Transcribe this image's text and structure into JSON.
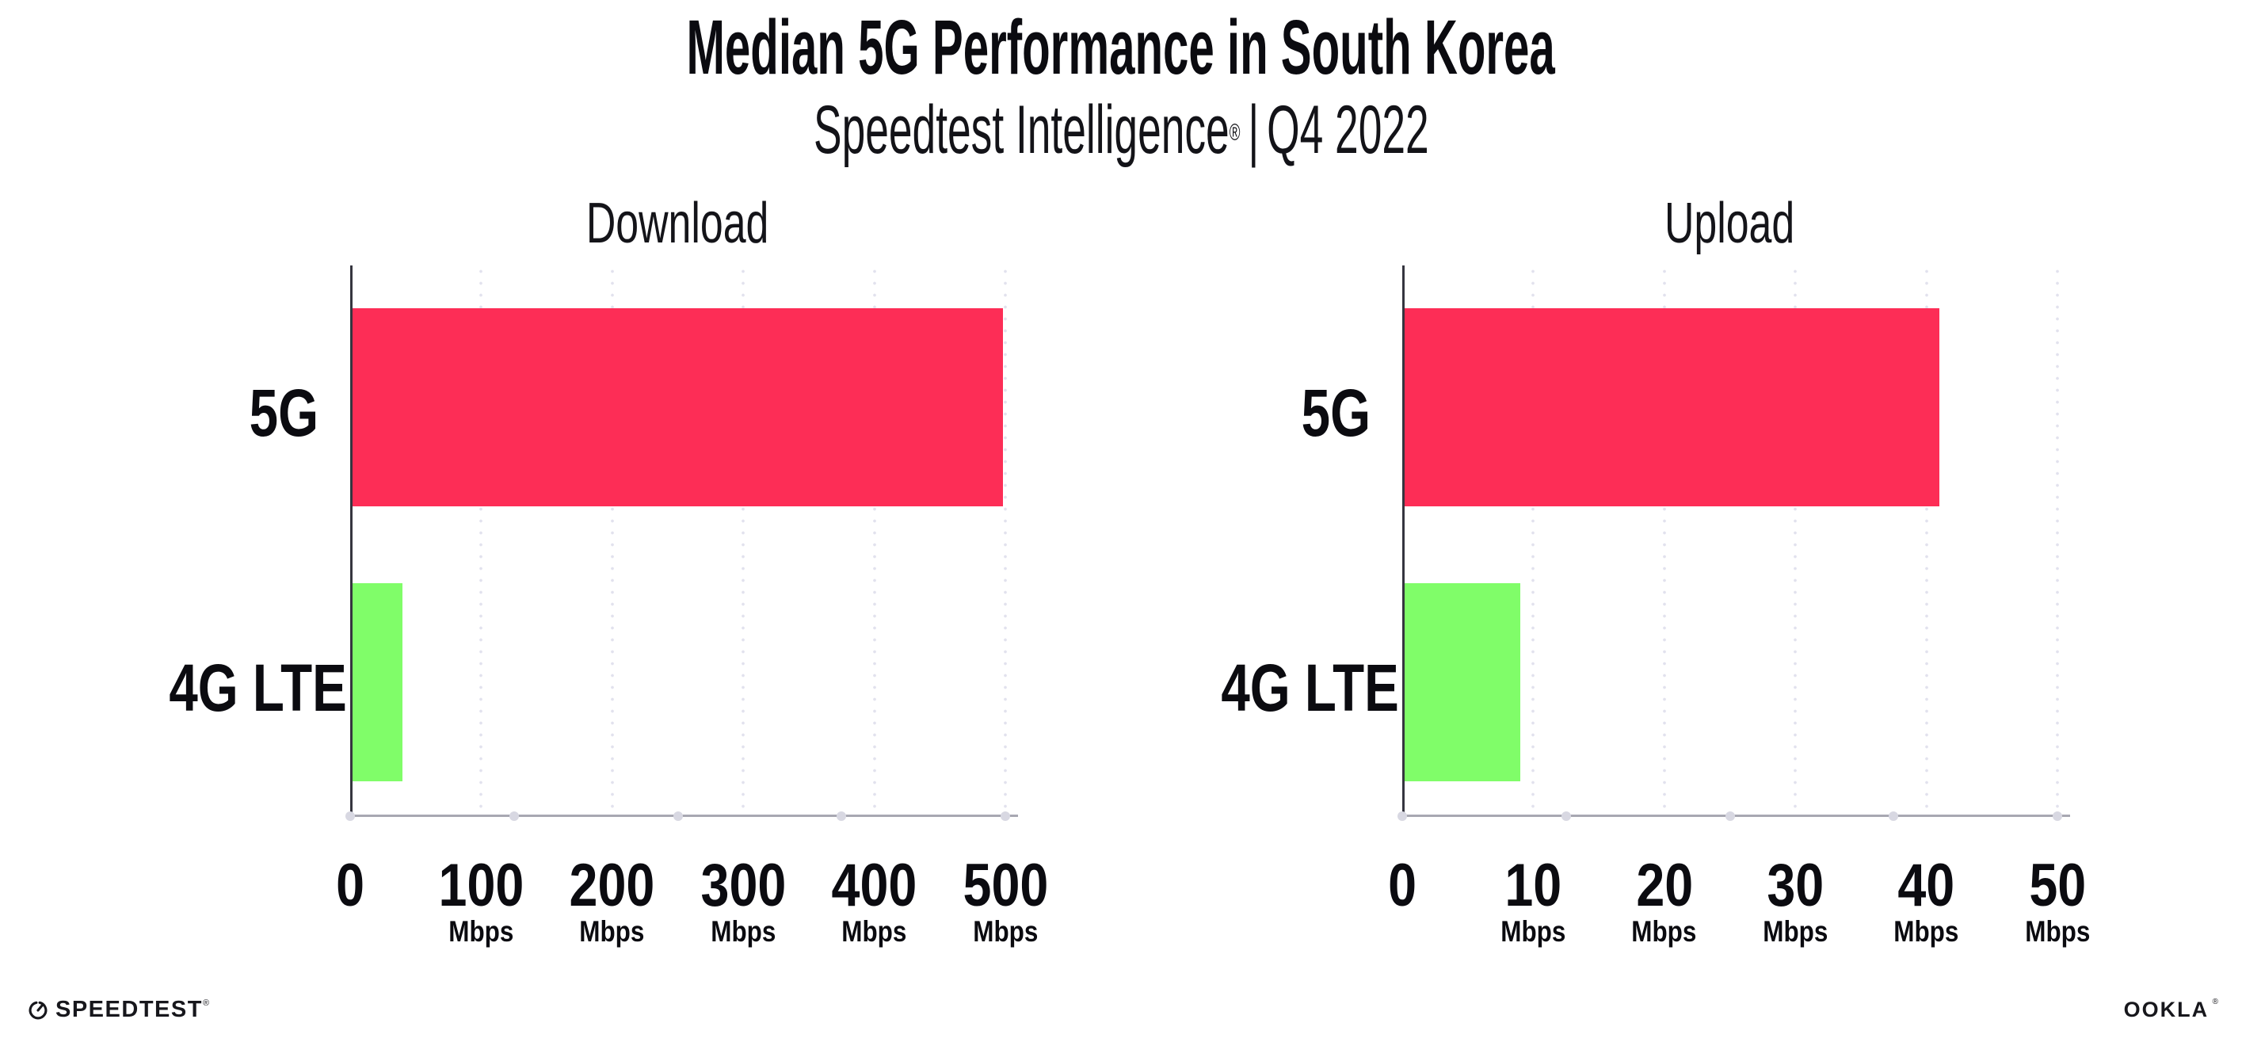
{
  "page_title": "Median 5G Performance in South Korea",
  "subtitle": {
    "brand": "Speedtest Intelligence",
    "reg": "®",
    "separator": "|",
    "period": "Q4 2022"
  },
  "chart_data": [
    {
      "type": "bar",
      "orientation": "horizontal",
      "title": "Download",
      "categories": [
        "5G",
        "4G LTE"
      ],
      "values": [
        498,
        40
      ],
      "unit": "Mbps",
      "xlim": [
        0,
        500
      ],
      "xticks": [
        0,
        100,
        200,
        300,
        400,
        500
      ],
      "bar_colors": [
        "#FD2D56",
        "#80FD69"
      ],
      "grid": "vertical-dotted",
      "legend_position": "none"
    },
    {
      "type": "bar",
      "orientation": "horizontal",
      "title": "Upload",
      "categories": [
        "5G",
        "4G LTE"
      ],
      "values": [
        41,
        9
      ],
      "unit": "Mbps",
      "xlim": [
        0,
        50
      ],
      "xticks": [
        0,
        10,
        20,
        30,
        40,
        50
      ],
      "bar_colors": [
        "#FD2D56",
        "#80FD69"
      ],
      "grid": "vertical-dotted",
      "legend_position": "none"
    }
  ],
  "footer": {
    "speedtest": "SPEEDTEST",
    "speedtest_reg": "®",
    "ookla": "OOKLA",
    "ookla_reg": "®"
  },
  "theme": {
    "background": "#FFFFFF",
    "text": "#0B0B10",
    "bar_5g": "#FD2D56",
    "bar_4g_lte": "#80FD69",
    "axis_line": "#35353F",
    "baseline": "#A8A8B2",
    "grid_dot": "#E2E2EE",
    "axis_marker_dot": "#D8D8E2"
  }
}
